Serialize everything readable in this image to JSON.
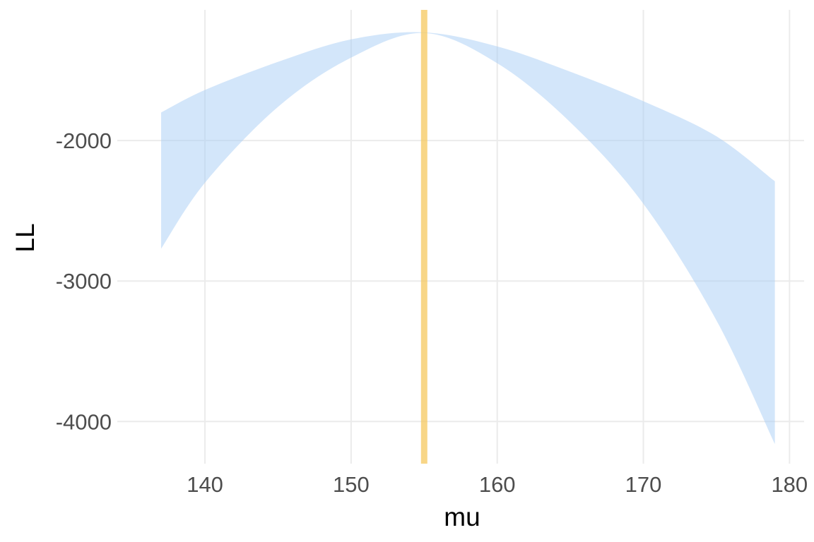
{
  "chart_data": {
    "type": "area",
    "xlabel": "mu",
    "ylabel": "LL",
    "xlim": [
      134,
      181
    ],
    "ylim": [
      -4300,
      -1070
    ],
    "x_ticks": [
      140,
      150,
      160,
      170,
      180
    ],
    "y_ticks": [
      -4000,
      -3000,
      -2000
    ],
    "grid": true,
    "legend": "none",
    "ribbon": {
      "color": "#a8cdf6",
      "opacity": 0.5,
      "x": [
        137,
        140,
        145,
        150,
        155,
        160,
        165,
        170,
        175,
        179
      ],
      "y_upper": [
        -1800,
        -1640,
        -1440,
        -1280,
        -1230,
        -1330,
        -1510,
        -1720,
        -1970,
        -2290
      ],
      "y_lower": [
        -2770,
        -2300,
        -1760,
        -1410,
        -1235,
        -1450,
        -1870,
        -2450,
        -3280,
        -4160
      ]
    },
    "vline": {
      "x": 155,
      "color": "#f6c85f",
      "opacity": 0.75
    }
  }
}
